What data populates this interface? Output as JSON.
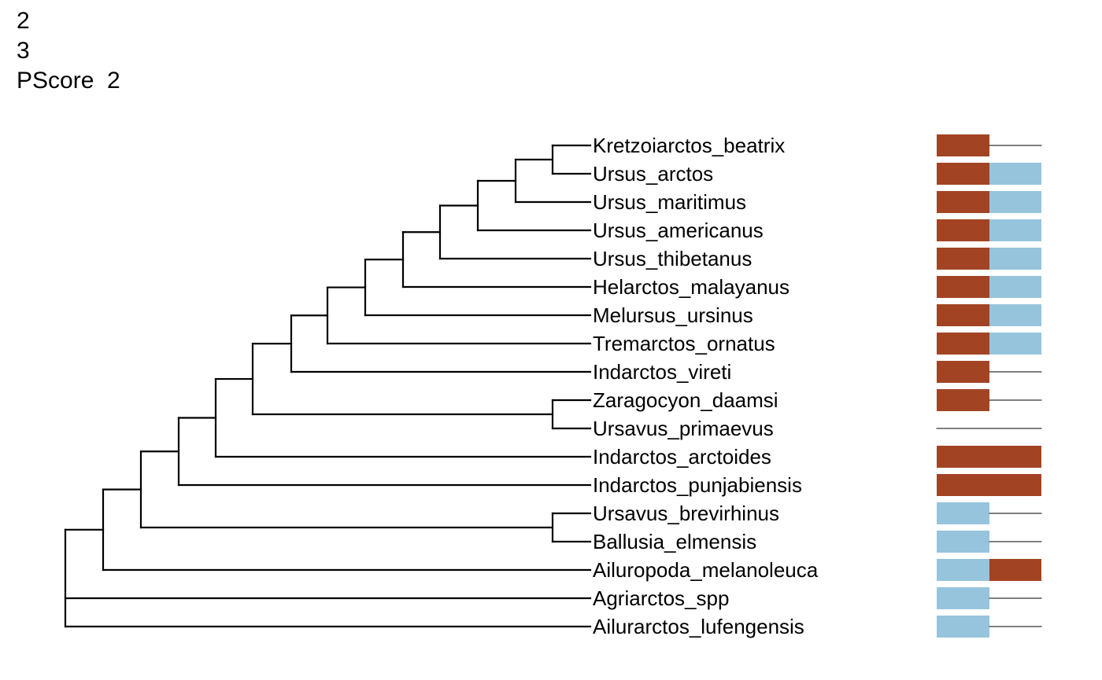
{
  "header": {
    "line1": "2",
    "line2": "3",
    "line3": "PScore  2"
  },
  "colors": {
    "state_a": "#a24423",
    "state_b": "#96c4dd",
    "branch": "#000000"
  },
  "tips": [
    {
      "name": "Kretzoiarctos_beatrix",
      "cells": [
        "a",
        "-"
      ]
    },
    {
      "name": "Ursus_arctos",
      "cells": [
        "a",
        "b"
      ]
    },
    {
      "name": "Ursus_maritimus",
      "cells": [
        "a",
        "b"
      ]
    },
    {
      "name": "Ursus_americanus",
      "cells": [
        "a",
        "b"
      ]
    },
    {
      "name": "Ursus_thibetanus",
      "cells": [
        "a",
        "b"
      ]
    },
    {
      "name": "Helarctos_malayanus",
      "cells": [
        "a",
        "b"
      ]
    },
    {
      "name": "Melursus_ursinus",
      "cells": [
        "a",
        "b"
      ]
    },
    {
      "name": "Tremarctos_ornatus",
      "cells": [
        "a",
        "b"
      ]
    },
    {
      "name": "Indarctos_vireti",
      "cells": [
        "a",
        "-"
      ]
    },
    {
      "name": "Zaragocyon_daamsi",
      "cells": [
        "a",
        "-"
      ]
    },
    {
      "name": "Ursavus_primaevus",
      "cells": [
        "-",
        "-"
      ]
    },
    {
      "name": "Indarctos_arctoides",
      "cells": [
        "a",
        "a"
      ]
    },
    {
      "name": "Indarctos_punjabiensis",
      "cells": [
        "a",
        "a"
      ]
    },
    {
      "name": "Ursavus_brevirhinus",
      "cells": [
        "b",
        "-"
      ]
    },
    {
      "name": "Ballusia_elmensis",
      "cells": [
        "b",
        "-"
      ]
    },
    {
      "name": "Ailuropoda_melanoleuca",
      "cells": [
        "b",
        "a"
      ]
    },
    {
      "name": "Agriarctos_spp",
      "cells": [
        "b",
        "-"
      ]
    },
    {
      "name": "Ailurarctos_lufengensis",
      "cells": [
        "b",
        "-"
      ]
    }
  ]
}
